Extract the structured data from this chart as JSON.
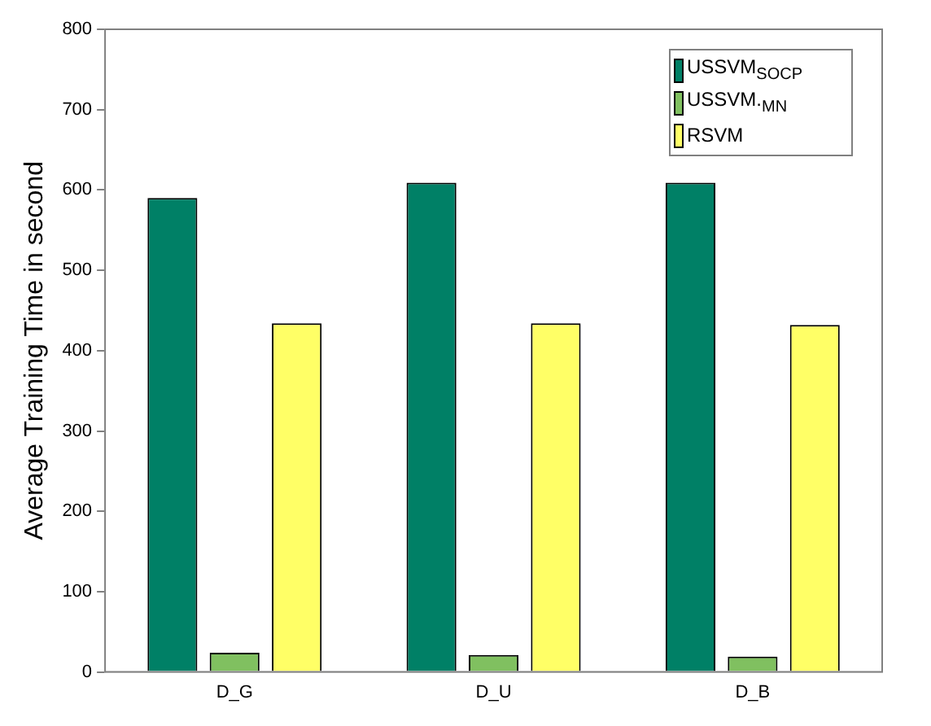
{
  "chart_data": {
    "type": "bar",
    "ylabel": "Average Training Time in second",
    "categories": [
      "D_G",
      "D_U",
      "D_B"
    ],
    "series": [
      {
        "name": "USSVM$_{SOCP}$",
        "color": "#008066",
        "values": [
          590,
          609,
          609
        ]
      },
      {
        "name": "USSVM.$_{MN}$",
        "color": "#80c060",
        "values": [
          24,
          21,
          19
        ]
      },
      {
        "name": "RSVM",
        "color": "#ffff66",
        "values": [
          434,
          434,
          432
        ]
      }
    ],
    "ylim": [
      0,
      800
    ],
    "yticks": [
      0,
      100,
      200,
      300,
      400,
      500,
      600,
      700,
      800
    ],
    "grid": false,
    "legend": "top right"
  }
}
